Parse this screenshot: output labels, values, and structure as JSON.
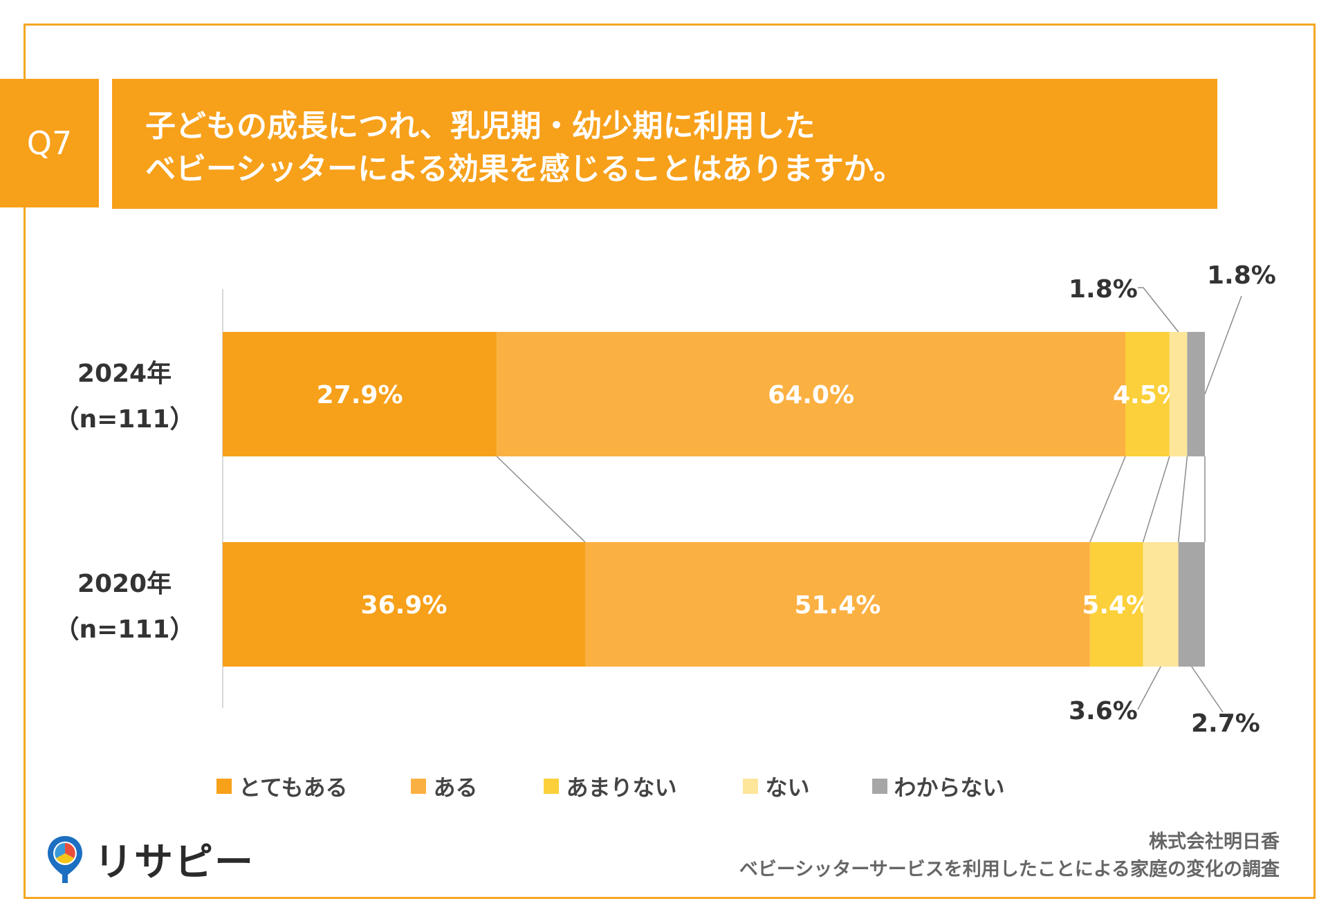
{
  "question": {
    "tab": "Q7",
    "title_line1": "子どもの成長につれ、乳児期・幼少期に利用した",
    "title_line2": "ベビーシッターによる効果を感じることはありますか。"
  },
  "colors": {
    "accent": "#f7a01a",
    "frame": "#f5a623"
  },
  "chart_data": {
    "type": "bar",
    "orientation": "horizontal-stacked-100",
    "categories": [
      [
        "2024年",
        "（n=111）"
      ],
      [
        "2020年",
        "（n=111）"
      ]
    ],
    "series": [
      {
        "name": "とてもある",
        "color": "#f7a01a",
        "values": [
          27.9,
          36.9
        ]
      },
      {
        "name": "ある",
        "color": "#fbb042",
        "values": [
          64.0,
          51.4
        ]
      },
      {
        "name": "あまりない",
        "color": "#fbd03a",
        "values": [
          4.5,
          5.4
        ]
      },
      {
        "name": "ない",
        "color": "#fde59a",
        "values": [
          1.8,
          3.6
        ]
      },
      {
        "name": "わからない",
        "color": "#a6a6a6",
        "values": [
          1.8,
          2.7
        ]
      }
    ],
    "data_labels": [
      [
        "27.9%",
        "64.0%",
        "4.5%",
        "1.8%",
        "1.8%"
      ],
      [
        "36.9%",
        "51.4%",
        "5.4%",
        "3.6%",
        "2.7%"
      ]
    ],
    "xlim": [
      0,
      100
    ],
    "legend_position": "bottom",
    "grid": false
  },
  "logo": {
    "name": "リサピー",
    "icon": "map-pin-pie-icon"
  },
  "credit": {
    "company": "株式会社明日香",
    "survey": "ベビーシッターサービスを利用したことによる家庭の変化の調査"
  }
}
